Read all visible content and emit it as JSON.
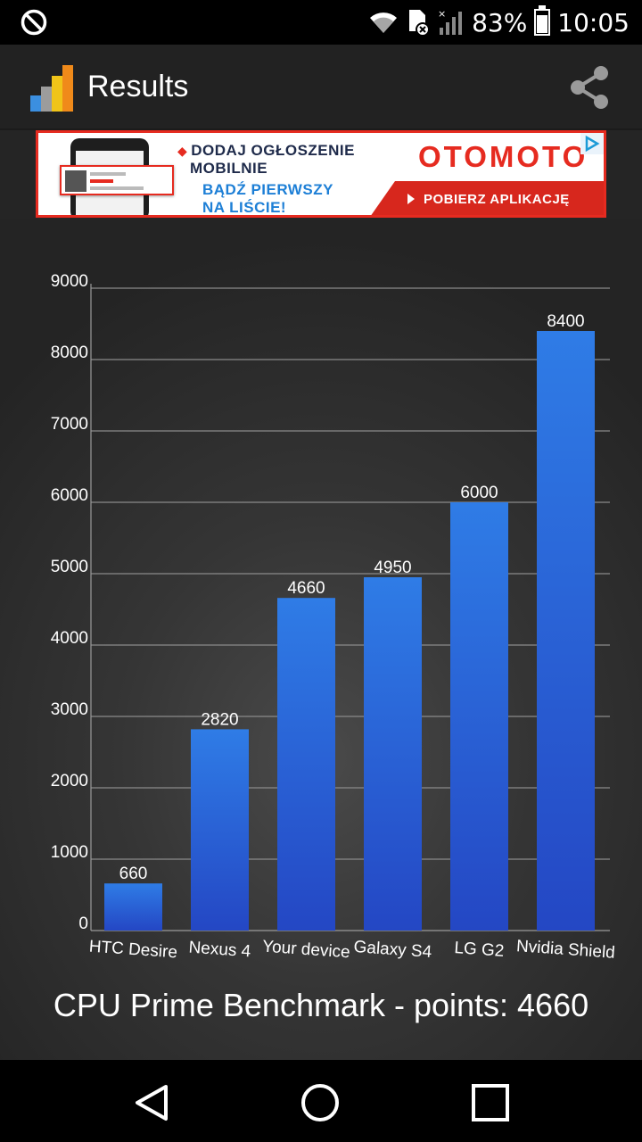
{
  "status_bar": {
    "battery_text": "83%",
    "time": "10:05",
    "icons": [
      "do-not-disturb-icon",
      "wifi-icon",
      "sim-error-icon",
      "signal-icon",
      "battery-icon"
    ]
  },
  "action_bar": {
    "title": "Results",
    "icons": [
      "app-chart-icon",
      "share-icon"
    ]
  },
  "ad": {
    "line1a": "DODAJ OGŁOSZENIE",
    "line1b": "MOBILNIE",
    "line2a": "BĄDŹ PIERWSZY",
    "line2b": "NA LIŚCIE!",
    "brand": "OTOMOTO",
    "cta": "POBIERZ APLIKACJĘ",
    "colors": {
      "red": "#e62b20",
      "blue": "#1d7fd6",
      "navy": "#1e2a4a"
    }
  },
  "chart_data": {
    "type": "bar",
    "categories": [
      "HTC Desire",
      "Nexus 4",
      "Your device",
      "Galaxy S4",
      "LG G2",
      "Nvidia Shield"
    ],
    "values": [
      660,
      2820,
      4660,
      4950,
      6000,
      8400
    ],
    "data_labels": [
      "660",
      "2820",
      "4660",
      "4950",
      "6000",
      "8400"
    ],
    "yticks": [
      0,
      1000,
      2000,
      3000,
      4000,
      5000,
      6000,
      7000,
      8000,
      9000
    ],
    "ylim": [
      0,
      9000
    ],
    "grid": true,
    "bar_color_top": "#2f7ce6",
    "bar_color_bottom": "#2447c4"
  },
  "caption": "CPU Prime Benchmark - points: 4660",
  "nav_bar": {
    "icons": [
      "back-icon",
      "home-icon",
      "recents-icon"
    ]
  }
}
